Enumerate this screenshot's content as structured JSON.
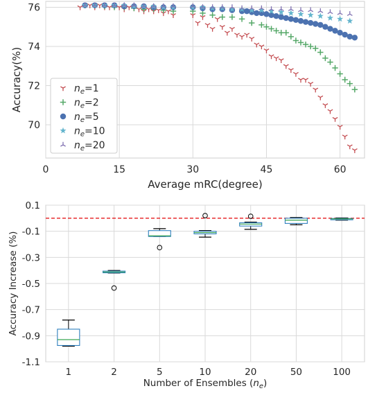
{
  "chart_data": [
    {
      "type": "scatter",
      "xlabel": "Average mRC(degree)",
      "ylabel": "Accuracy(%)",
      "xlim": [
        0,
        65
      ],
      "ylim": [
        68.3,
        76.3
      ],
      "xticks": [
        0,
        15,
        30,
        45,
        60
      ],
      "yticks": [
        70,
        72,
        74,
        76
      ],
      "xtick_labels": [
        "0",
        "15",
        "30",
        "45",
        "60"
      ],
      "ytick_labels": [
        "70",
        "72",
        "74",
        "76"
      ],
      "grid": true,
      "legend_position": "lower-left",
      "series": [
        {
          "name_prefix": "n",
          "name_sub": "e",
          "name_suffix": "=1",
          "marker": "tri_down",
          "color": "#c44e52",
          "x": [
            7,
            8,
            9,
            10,
            11,
            12,
            13,
            14,
            15,
            16,
            17,
            18,
            19,
            20,
            21,
            22,
            23,
            24,
            25,
            26,
            30,
            31,
            32,
            33,
            34,
            35,
            36,
            37,
            38,
            39,
            40,
            41,
            42,
            43,
            44,
            45,
            46,
            47,
            48,
            49,
            50,
            51,
            52,
            53,
            54,
            55,
            56,
            57,
            58,
            59,
            60,
            61,
            62,
            63
          ],
          "y": [
            76.0,
            76.1,
            76.1,
            76.0,
            76.1,
            76.0,
            76.0,
            76.05,
            76.0,
            75.9,
            76.0,
            75.95,
            75.9,
            75.8,
            75.9,
            75.8,
            75.85,
            75.7,
            75.8,
            75.6,
            75.6,
            75.2,
            75.5,
            75.1,
            74.9,
            75.4,
            75.0,
            74.7,
            74.9,
            74.6,
            74.5,
            74.6,
            74.4,
            74.1,
            74.0,
            73.8,
            73.5,
            73.4,
            73.3,
            73.0,
            72.8,
            72.6,
            72.3,
            72.3,
            72.1,
            71.8,
            71.4,
            71.0,
            70.7,
            70.3,
            69.9,
            69.4,
            68.9,
            68.7
          ]
        },
        {
          "name_prefix": "n",
          "name_sub": "e",
          "name_suffix": "=2",
          "marker": "plus",
          "color": "#55a868",
          "x": [
            8,
            10,
            12,
            14,
            16,
            18,
            20,
            22,
            24,
            26,
            30,
            32,
            34,
            36,
            38,
            40,
            42,
            44,
            45,
            46,
            47,
            48,
            49,
            50,
            51,
            52,
            53,
            54,
            55,
            56,
            57,
            58,
            59,
            60,
            61,
            62,
            63
          ],
          "y": [
            76.1,
            76.1,
            76.05,
            76.0,
            76.0,
            75.95,
            75.9,
            75.9,
            75.85,
            75.8,
            75.8,
            75.7,
            75.6,
            75.5,
            75.5,
            75.4,
            75.2,
            75.1,
            75.0,
            74.9,
            74.8,
            74.7,
            74.7,
            74.5,
            74.3,
            74.2,
            74.1,
            74.0,
            73.9,
            73.7,
            73.4,
            73.2,
            72.9,
            72.6,
            72.3,
            72.1,
            71.8
          ]
        },
        {
          "name_prefix": "n",
          "name_sub": "e",
          "name_suffix": "=5",
          "marker": "circle",
          "color": "#4c72b0",
          "x": [
            8,
            10,
            12,
            14,
            16,
            18,
            20,
            22,
            24,
            26,
            30,
            32,
            34,
            36,
            38,
            40,
            41,
            42,
            43,
            44,
            45,
            46,
            47,
            48,
            49,
            50,
            51,
            52,
            53,
            54,
            55,
            56,
            57,
            58,
            59,
            60,
            61,
            62,
            63
          ],
          "y": [
            76.1,
            76.1,
            76.1,
            76.1,
            76.05,
            76.05,
            76.05,
            76.0,
            76.0,
            76.0,
            76.0,
            75.95,
            75.9,
            75.9,
            75.85,
            75.8,
            75.8,
            75.75,
            75.7,
            75.7,
            75.65,
            75.6,
            75.55,
            75.5,
            75.45,
            75.4,
            75.35,
            75.3,
            75.25,
            75.2,
            75.15,
            75.1,
            75.0,
            74.9,
            74.8,
            74.7,
            74.6,
            74.5,
            74.45
          ]
        },
        {
          "name_prefix": "n",
          "name_sub": "e",
          "name_suffix": "=10",
          "marker": "star",
          "color": "#64b5cd",
          "x": [
            8,
            10,
            12,
            14,
            16,
            18,
            20,
            22,
            24,
            26,
            30,
            32,
            34,
            36,
            38,
            40,
            42,
            44,
            46,
            48,
            50,
            52,
            54,
            56,
            58,
            60,
            62
          ],
          "y": [
            76.1,
            76.1,
            76.1,
            76.1,
            76.1,
            76.05,
            76.05,
            76.05,
            76.0,
            76.0,
            76.0,
            76.0,
            75.95,
            75.95,
            75.9,
            75.9,
            75.85,
            75.85,
            75.8,
            75.75,
            75.7,
            75.65,
            75.6,
            75.55,
            75.45,
            75.4,
            75.3
          ]
        },
        {
          "name_prefix": "n",
          "name_sub": "e",
          "name_suffix": "=20",
          "marker": "tri_up",
          "color": "#8172b2",
          "x": [
            8,
            10,
            12,
            14,
            16,
            18,
            20,
            22,
            24,
            26,
            30,
            32,
            34,
            36,
            38,
            40,
            42,
            44,
            46,
            48,
            50,
            52,
            54,
            56,
            58,
            60,
            62
          ],
          "y": [
            76.1,
            76.1,
            76.1,
            76.1,
            76.1,
            76.1,
            76.05,
            76.05,
            76.05,
            76.05,
            76.05,
            76.0,
            76.0,
            76.0,
            76.0,
            75.95,
            75.95,
            75.95,
            75.9,
            75.9,
            75.9,
            75.85,
            75.85,
            75.8,
            75.75,
            75.7,
            75.65
          ]
        }
      ]
    },
    {
      "type": "box",
      "xlabel_prefix": "Number of Ensembles (",
      "xlabel_var": "n",
      "xlabel_sub": "e",
      "xlabel_suffix": ")",
      "ylabel": "Accuracy Increase (%)",
      "ylim": [
        -1.1,
        0.1
      ],
      "yticks": [
        -1.1,
        -0.9,
        -0.7,
        -0.5,
        -0.3,
        -0.1,
        0.1
      ],
      "ytick_labels": [
        "-1.1",
        "-0.9",
        "-0.7",
        "-0.5",
        "-0.3",
        "-0.1",
        "0.1"
      ],
      "categories": [
        "1",
        "2",
        "5",
        "10",
        "20",
        "50",
        "100"
      ],
      "grid": true,
      "reference_line": {
        "y": 0.0,
        "color": "#e41a1c",
        "style": "dashed"
      },
      "boxes": [
        {
          "whislo": -0.98,
          "q1": -0.975,
          "med": -0.93,
          "q3": -0.85,
          "whishi": -0.78,
          "fliers": []
        },
        {
          "whislo": -0.42,
          "q1": -0.418,
          "med": -0.412,
          "q3": -0.405,
          "whishi": -0.4,
          "fliers": [
            -0.535
          ]
        },
        {
          "whislo": -0.14,
          "q1": -0.14,
          "med": -0.135,
          "q3": -0.095,
          "whishi": -0.08,
          "fliers": [
            -0.225
          ]
        },
        {
          "whislo": -0.145,
          "q1": -0.12,
          "med": -0.11,
          "q3": -0.1,
          "whishi": -0.095,
          "fliers": [
            0.02
          ]
        },
        {
          "whislo": -0.085,
          "q1": -0.06,
          "med": -0.045,
          "q3": -0.035,
          "whishi": -0.03,
          "fliers": [
            0.015
          ]
        },
        {
          "whislo": -0.05,
          "q1": -0.04,
          "med": -0.015,
          "q3": 0.0,
          "whishi": 0.005,
          "fliers": []
        },
        {
          "whislo": -0.015,
          "q1": -0.012,
          "med": -0.005,
          "q3": -0.002,
          "whishi": 0.002,
          "fliers": []
        }
      ]
    }
  ]
}
